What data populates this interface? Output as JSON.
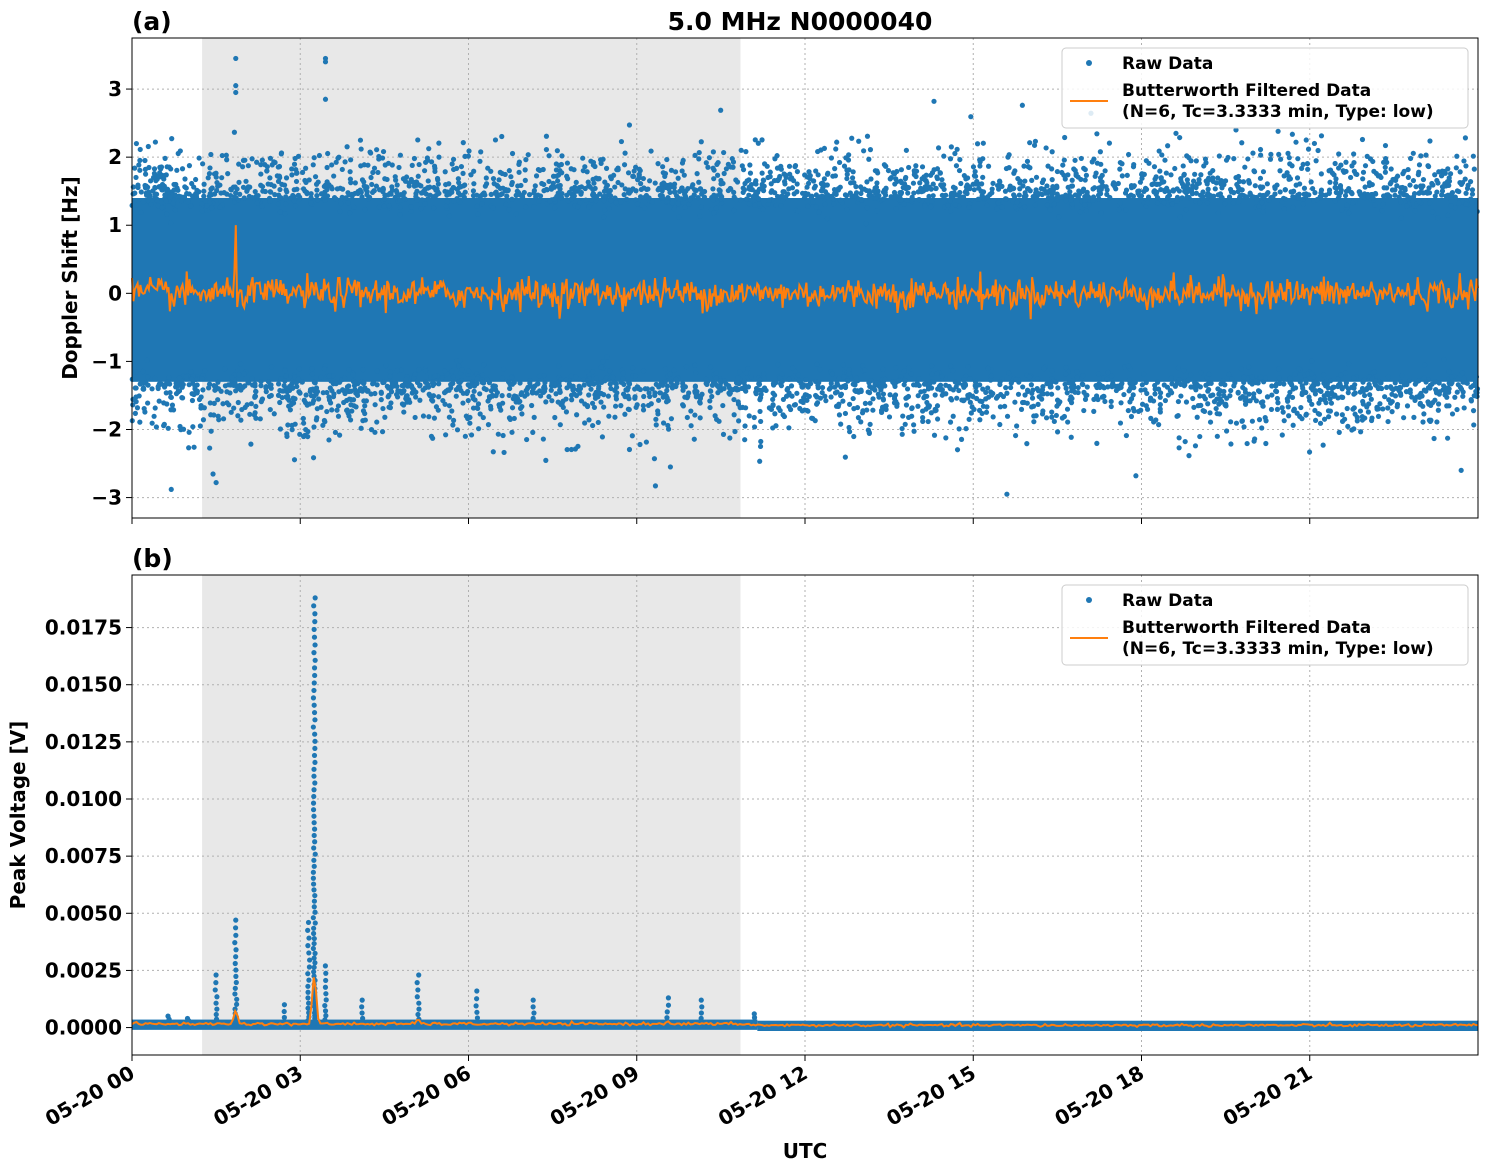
{
  "figure": {
    "title": "5.0 MHz N0000040",
    "xlabel": "UTC",
    "background": "#ffffff"
  },
  "colors": {
    "raw": "#1f77b4",
    "filtered": "#ff7f0e",
    "shade": "#e8e8e8",
    "grid": "#b0b0b0"
  },
  "legend": {
    "raw_label": "Raw Data",
    "filtered_label_line1": "Butterworth Filtered Data",
    "filtered_label_line2": "(N=6, Tc=3.3333 min, Type: low)",
    "placement": "top-right"
  },
  "x_ticks": [
    "05-20 00",
    "05-20 03",
    "05-20 06",
    "05-20 09",
    "05-20 12",
    "05-20 15",
    "05-20 18",
    "05-20 21"
  ],
  "chart_data": [
    {
      "type": "scatter",
      "panel_label": "(a)",
      "ylabel": "Doppler Shift [Hz]",
      "x_unit": "hours UTC on 05-20",
      "xlim": [
        0,
        24
      ],
      "ylim": [
        -3.3,
        3.75
      ],
      "y_ticks": [
        3,
        2,
        1,
        0,
        -1,
        -2,
        -3
      ],
      "y_tick_labels": [
        "3",
        "2",
        "1",
        "0",
        "−1",
        "−2",
        "−3"
      ],
      "grid": true,
      "shaded_span": [
        1.25,
        10.85
      ],
      "raw_band": {
        "core_low": -1.3,
        "core_high": 1.4,
        "scatter_low": -2.9,
        "scatter_high": 3.45
      },
      "raw_outliers": [
        [
          1.85,
          3.45
        ],
        [
          1.85,
          3.05
        ],
        [
          1.85,
          2.95
        ],
        [
          3.45,
          3.45
        ],
        [
          3.45,
          3.4
        ],
        [
          3.45,
          2.85
        ],
        [
          14.3,
          2.82
        ],
        [
          15.6,
          -2.95
        ],
        [
          0.7,
          -2.88
        ],
        [
          1.5,
          -2.78
        ],
        [
          17.9,
          -2.68
        ],
        [
          9.6,
          -2.55
        ],
        [
          23.7,
          -2.6
        ]
      ],
      "filtered_level": 0.0,
      "filtered_amplitude": 0.25,
      "filtered_peaks": [
        [
          1.85,
          1.0
        ]
      ]
    },
    {
      "type": "scatter",
      "panel_label": "(b)",
      "ylabel": "Peak Voltage [V]",
      "x_unit": "hours UTC on 05-20",
      "xlim": [
        0,
        24
      ],
      "ylim": [
        -0.0012,
        0.0198
      ],
      "y_ticks": [
        0.0175,
        0.015,
        0.0125,
        0.01,
        0.0075,
        0.005,
        0.0025,
        0.0
      ],
      "y_tick_labels": [
        "0.0175",
        "0.0150",
        "0.0125",
        "0.0100",
        "0.0075",
        "0.0050",
        "0.0025",
        "0.0000"
      ],
      "grid": true,
      "shaded_span": [
        1.25,
        10.85
      ],
      "baseline": 0.0001,
      "raw_spikes": [
        [
          0.65,
          0.0005
        ],
        [
          1.0,
          0.0004
        ],
        [
          1.5,
          0.0023
        ],
        [
          1.85,
          0.0047
        ],
        [
          2.7,
          0.001
        ],
        [
          3.15,
          0.0046
        ],
        [
          3.25,
          0.0188
        ],
        [
          3.45,
          0.0027
        ],
        [
          4.1,
          0.0012
        ],
        [
          5.1,
          0.0023
        ],
        [
          6.15,
          0.0016
        ],
        [
          7.15,
          0.0012
        ],
        [
          9.55,
          0.0013
        ],
        [
          10.15,
          0.0012
        ],
        [
          11.1,
          0.0006
        ]
      ],
      "filtered_spikes": [
        [
          1.85,
          0.0008
        ],
        [
          3.25,
          0.0025
        ],
        [
          5.1,
          0.0004
        ],
        [
          9.55,
          0.0003
        ]
      ]
    }
  ]
}
